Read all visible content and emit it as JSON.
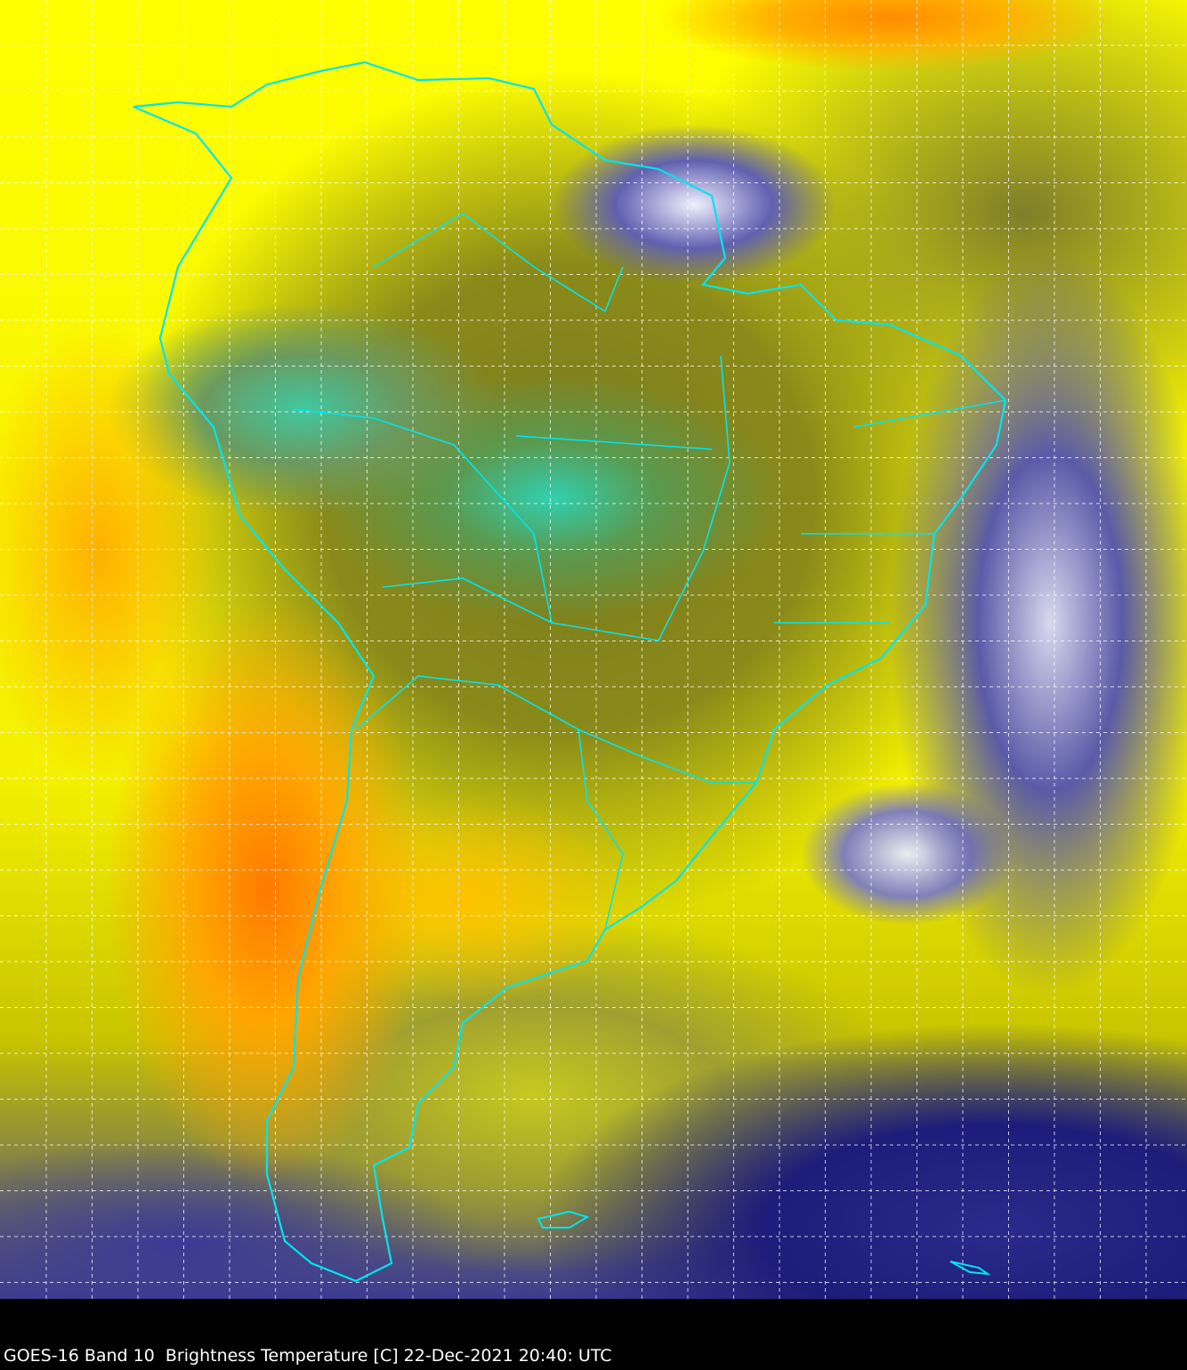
{
  "caption": "GOES-16 Band 10  Brightness Temperature [C] 22-Dec-2021 20:40: UTC",
  "colors": {
    "boundary": "#00e5ee",
    "grid": "#ffffff",
    "warm": "#ffff00",
    "hot": "#ff8c00",
    "cold_cloud": "#2cd6b4",
    "mid_cloud": "#1a1a80"
  }
}
